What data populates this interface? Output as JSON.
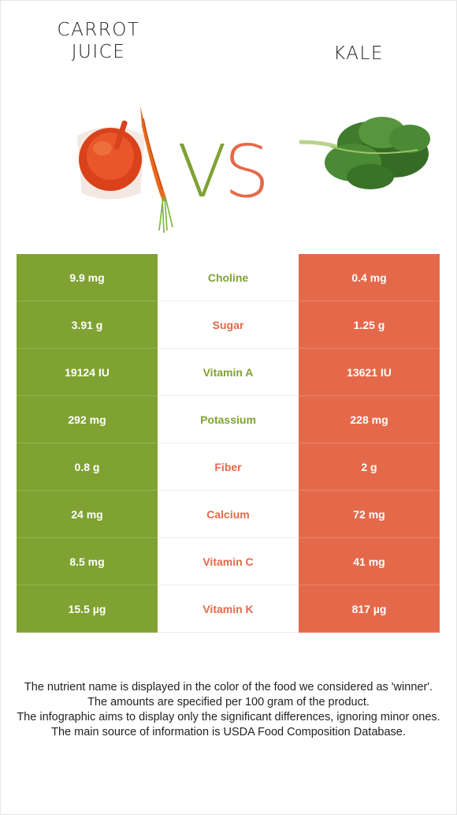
{
  "titles": {
    "left_line1": "CARROT",
    "left_line2": "JUICE",
    "right": "KALE",
    "vs_v": "V",
    "vs_s": "S"
  },
  "colors": {
    "left_food": "#7fa232",
    "right_food": "#e4694a"
  },
  "rows": [
    {
      "left": "9.9 mg",
      "nutrient": "Choline",
      "right": "0.4 mg",
      "winner": "left"
    },
    {
      "left": "3.91 g",
      "nutrient": "Sugar",
      "right": "1.25 g",
      "winner": "right"
    },
    {
      "left": "19124 IU",
      "nutrient": "Vitamin A",
      "right": "13621 IU",
      "winner": "left"
    },
    {
      "left": "292 mg",
      "nutrient": "Potassium",
      "right": "228 mg",
      "winner": "left"
    },
    {
      "left": "0.8 g",
      "nutrient": "Fiber",
      "right": "2 g",
      "winner": "right"
    },
    {
      "left": "24 mg",
      "nutrient": "Calcium",
      "right": "72 mg",
      "winner": "right"
    },
    {
      "left": "8.5 mg",
      "nutrient": "Vitamin C",
      "right": "41 mg",
      "winner": "right"
    },
    {
      "left": "15.5 µg",
      "nutrient": "Vitamin K",
      "right": "817 µg",
      "winner": "right"
    }
  ],
  "footer": {
    "line1": "The nutrient name is displayed in the color of the food we considered as 'winner'.",
    "line2": "The amounts are specified per 100 gram of the product.",
    "line3": "The infographic aims to display only the significant differences, ignoring minor ones.",
    "line4": "The main source of information is USDA Food Composition Database."
  },
  "icons": {
    "left_image": "carrot-juice-icon",
    "right_image": "kale-icon"
  }
}
